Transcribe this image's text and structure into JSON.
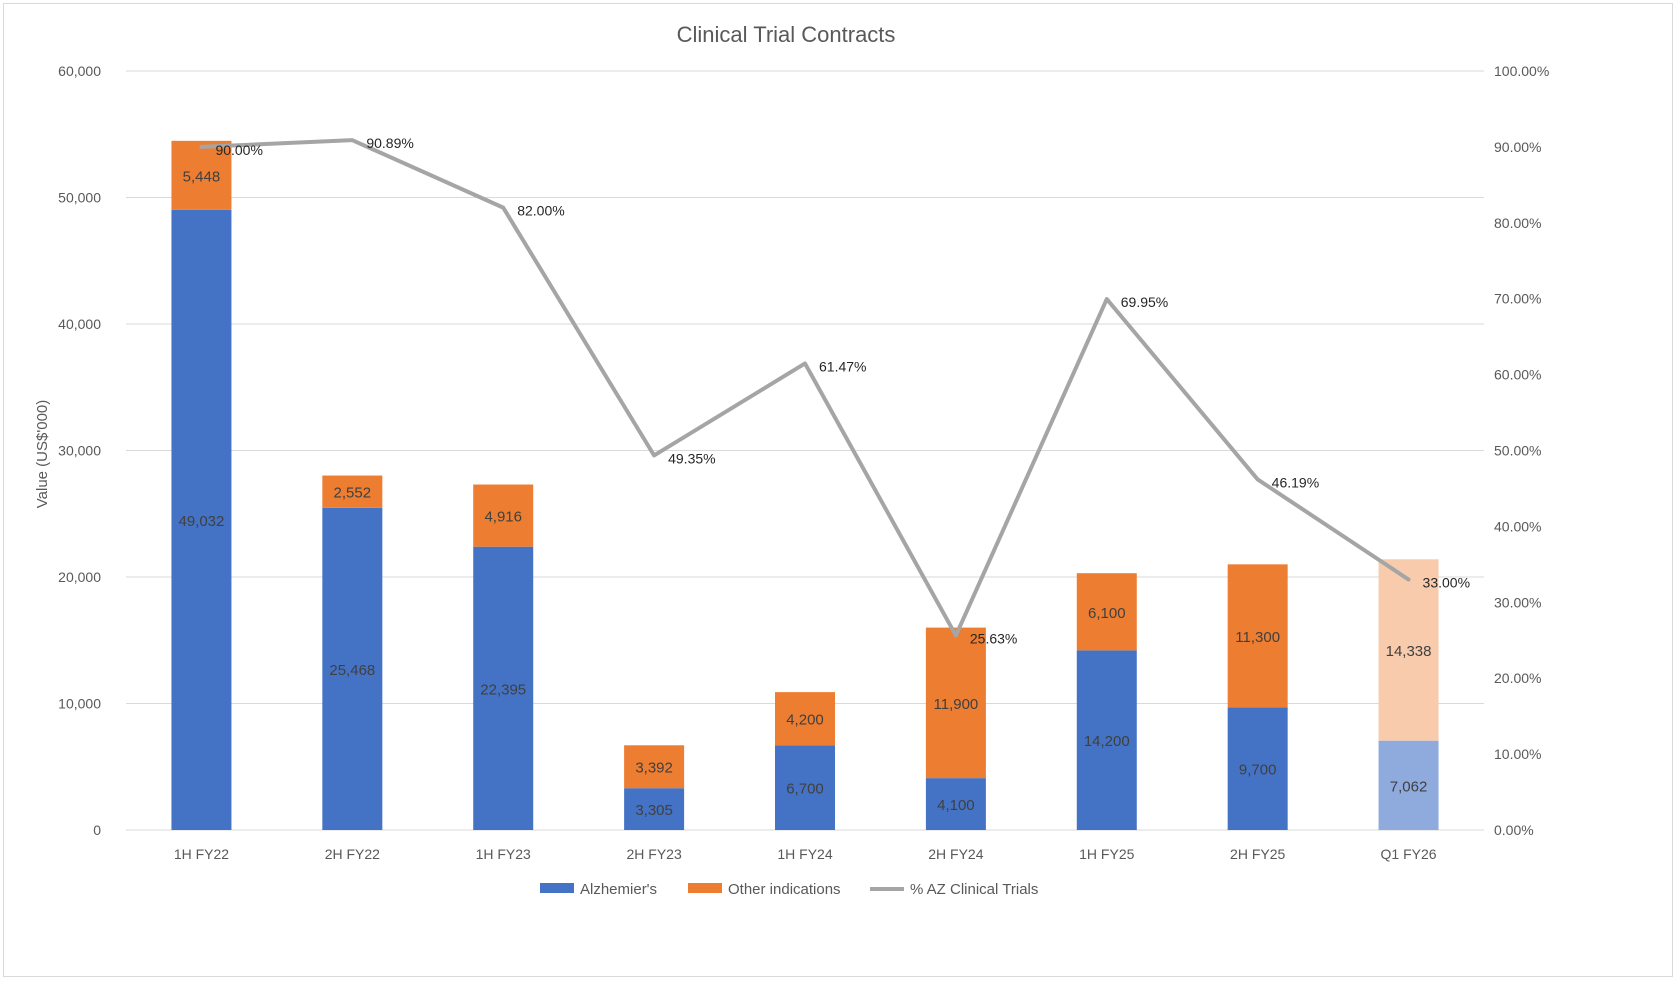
{
  "chart_data": {
    "type": "bar",
    "stacked": true,
    "title": "Clinical Trial Contracts",
    "ylabel": "Value (US$'000)",
    "xlabel": "",
    "ylim": [
      0,
      60000
    ],
    "y_ticks": [
      0,
      10000,
      20000,
      30000,
      40000,
      50000,
      60000
    ],
    "y_tick_labels": [
      "0",
      "10,000",
      "20,000",
      "30,000",
      "40,000",
      "50,000",
      "60,000"
    ],
    "y2lim": [
      0,
      100
    ],
    "y2_ticks": [
      0,
      10,
      20,
      30,
      40,
      50,
      60,
      70,
      80,
      90,
      100
    ],
    "y2_tick_labels": [
      "0.00%",
      "10.00%",
      "20.00%",
      "30.00%",
      "40.00%",
      "50.00%",
      "60.00%",
      "70.00%",
      "80.00%",
      "90.00%",
      "100.00%"
    ],
    "grid": true,
    "legend_position": "bottom",
    "categories": [
      "1H FY22",
      "2H FY22",
      "1H FY23",
      "2H FY23",
      "1H FY24",
      "2H FY24",
      "1H FY25",
      "2H FY25",
      "Q1 FY26"
    ],
    "series": [
      {
        "name": "Alzhemier's",
        "kind": "bar",
        "color": "#4472c4",
        "highlight_color": "#8faadc",
        "values": [
          49032,
          25468,
          22395,
          3305,
          6700,
          4100,
          14200,
          9700,
          7062
        ],
        "labels": [
          "49,032",
          "25,468",
          "22,395",
          "3,305",
          "6,700",
          "4,100",
          "14,200",
          "9,700",
          "7,062"
        ]
      },
      {
        "name": "Other indications",
        "kind": "bar",
        "color": "#ed7d31",
        "highlight_color": "#f8cbad",
        "values": [
          5448,
          2552,
          4916,
          3392,
          4200,
          11900,
          6100,
          11300,
          14338
        ],
        "labels": [
          "5,448",
          "2,552",
          "4,916",
          "3,392",
          "4,200",
          "11,900",
          "6,100",
          "11,300",
          "14,338"
        ]
      },
      {
        "name": "% AZ Clinical Trials",
        "kind": "line",
        "axis": "secondary",
        "color": "#a5a5a5",
        "values": [
          90.0,
          90.89,
          82.0,
          49.35,
          61.47,
          25.63,
          69.95,
          46.19,
          33.0
        ],
        "labels": [
          "90.00%",
          "90.89%",
          "82.00%",
          "49.35%",
          "61.47%",
          "25.63%",
          "69.95%",
          "46.19%",
          "33.00%"
        ]
      }
    ],
    "highlighted_categories": [
      "Q1 FY26"
    ]
  }
}
